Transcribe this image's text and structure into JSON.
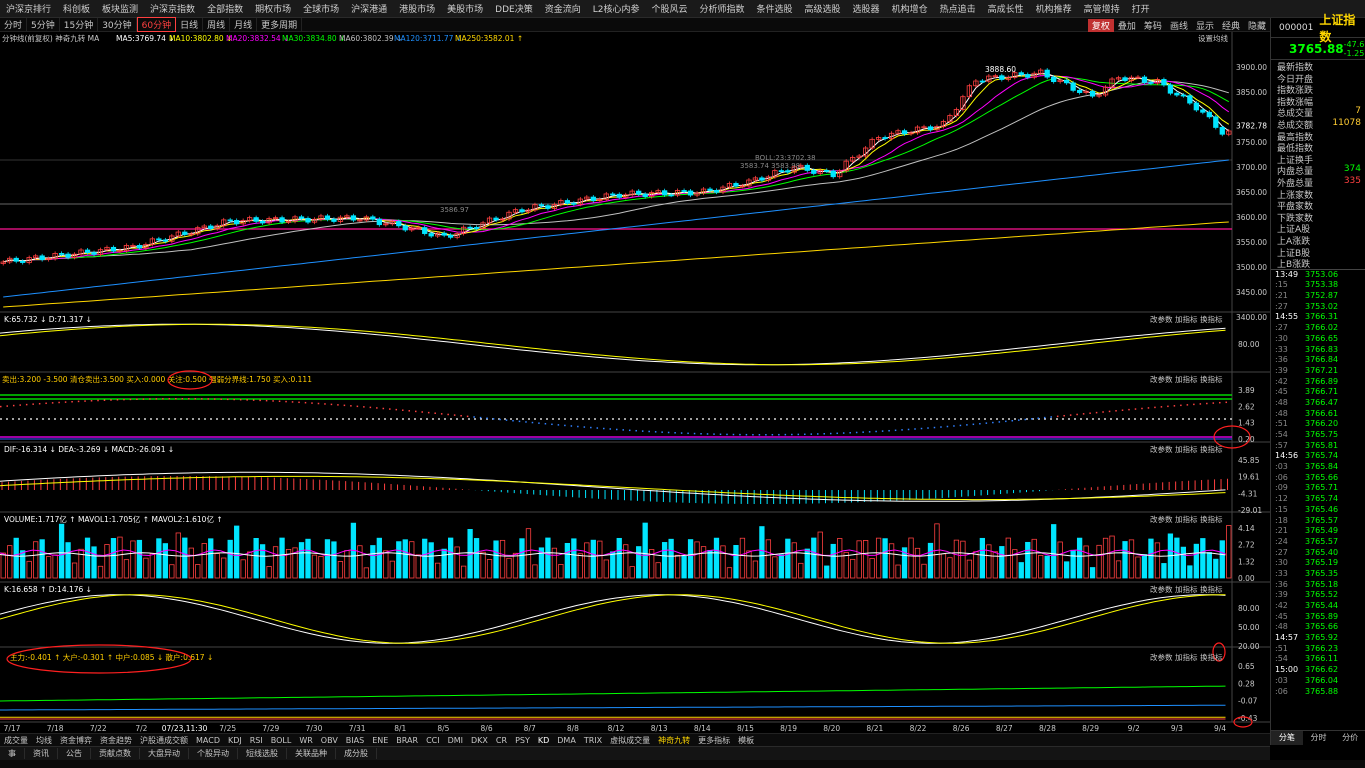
{
  "top_menu": [
    "沪深京排行",
    "科创板",
    "板块监测",
    "沪深京指数",
    "全部指数",
    "期权市场",
    "全球市场",
    "沪深港通",
    "港股市场",
    "美股市场",
    "DDE决策",
    "资金流向",
    "L2核心内参",
    "个股风云",
    "分析师指数",
    "条件选股",
    "高级选股",
    "选股器",
    "机构增仓",
    "热点追击",
    "高成长性",
    "机构推荐",
    "高管增持",
    "打开"
  ],
  "periods": [
    "分时",
    "5分钟",
    "15分钟",
    "30分钟",
    "60分钟",
    "日线",
    "周线",
    "月线",
    "更多周期"
  ],
  "active_period": "60分钟",
  "toolbar_right": [
    "复权",
    "叠加",
    "筹码",
    "画线",
    "显示",
    "经典",
    "隐藏"
  ],
  "ma_line": {
    "label": "分钟线(前复权)  神奇九转  MA",
    "ma5": "MA5:3769.74 ↓",
    "ma10": "MA10:3802.80 ↓",
    "ma20": "MA20:3832.54 ↓",
    "ma30": "MA30:3834.80 ↓",
    "ma60": "MA60:3802.39 ↓",
    "ma120": "MA120:3711.77 ↓",
    "ma250": "MA250:3582.01 ↑",
    "settings": "设置均线"
  },
  "price_axis": [
    "3900.00",
    "3850.00",
    "3782.78",
    "3750.00",
    "3700.00",
    "3650.00",
    "3600.00",
    "3550.00",
    "3500.00",
    "3450.00",
    "3400.00"
  ],
  "annotations": {
    "high": "3888.60",
    "boll1": "BOLL:23:3702.38",
    "boll2": "3583.74 3583.98",
    "low1": "3586.97"
  },
  "panel1": {
    "label": "K:65.732 ↓  D:71.317 ↓",
    "axis": [
      "80.00"
    ]
  },
  "panel2": {
    "label": "卖出:3.200  -3.500  清仓卖出:3.500  买入:0.000  关注:0.500  强弱分界线:1.750  买入:0.111",
    "circled": "关注:0.500",
    "axis": [
      "3.89",
      "2.62",
      "1.43",
      "0.20"
    ]
  },
  "panel3": {
    "label": "DIF:-16.314 ↓  DEA:-3.269 ↓  MACD:-26.091 ↓",
    "axis": [
      "45.85",
      "19.61",
      "-4.31",
      "-29.01"
    ]
  },
  "panel4": {
    "label": "VOLUME:1.717亿 ↑  MAVOL1:1.705亿 ↑  MAVOL2:1.610亿 ↑",
    "axis": [
      "4.14",
      "2.72",
      "1.32",
      "0.00"
    ]
  },
  "panel5": {
    "label": "K:16.658 ↑  D:14.176 ↓",
    "axis": [
      "80.00",
      "50.00",
      "20.00"
    ]
  },
  "panel6": {
    "label": "主力:-0.401 ↑  大户:-0.301 ↑  中户:0.085 ↓  散户:0.617 ↓",
    "axis": [
      "0.65",
      "0.28",
      "-0.07",
      "-0.43"
    ]
  },
  "panel_tools": [
    "改参数",
    "加指标",
    "换指标"
  ],
  "date_axis": [
    "7/17",
    "7/18",
    "7/22",
    "7/2",
    "07/23,11:30",
    "7/25",
    "7/29",
    "7/30",
    "7/31",
    "8/1",
    "8/5",
    "8/6",
    "8/7",
    "8/8",
    "8/12",
    "8/13",
    "8/14",
    "8/15",
    "8/19",
    "8/20",
    "8/21",
    "8/22",
    "8/26",
    "8/27",
    "8/28",
    "8/29",
    "9/2",
    "9/3",
    "9/4"
  ],
  "indicator_tabs": [
    "成交量",
    "均线",
    "资金博弈",
    "资金趋势",
    "沪股通成交额",
    "MACD",
    "KDJ",
    "RSI",
    "BOLL",
    "WR",
    "OBV",
    "BIAS",
    "ENE",
    "BRAR",
    "CCI",
    "DMI",
    "DKX",
    "CR",
    "PSY",
    "KD",
    "DMA",
    "TRIX",
    "虚拟成交量",
    "神奇九转",
    "更多指标",
    "模板"
  ],
  "bottom_tabs": [
    "事",
    "资讯",
    "公告",
    "贡献点数",
    "大盘异动",
    "个股异动",
    "短线选股",
    "关联品种",
    "成分股"
  ],
  "right_panel": {
    "code": "000001",
    "name": "上证指数",
    "price": "3765.88",
    "change": "-47.6",
    "pct": "-1.25",
    "fields": [
      {
        "k": "最新指数",
        "v": ""
      },
      {
        "k": "今日开盘",
        "v": ""
      },
      {
        "k": "指数涨跌",
        "v": ""
      },
      {
        "k": "指数涨幅",
        "v": ""
      },
      {
        "k": "总成交量",
        "v": "7"
      },
      {
        "k": "总成交额",
        "v": "11078"
      },
      {
        "k": "最高指数",
        "v": ""
      },
      {
        "k": "最低指数",
        "v": ""
      },
      {
        "k": "上证换手",
        "v": ""
      },
      {
        "k": "内盘总量",
        "v": "374"
      },
      {
        "k": "外盘总量",
        "v": "335"
      },
      {
        "k": "上涨家数",
        "v": ""
      },
      {
        "k": "平盘家数",
        "v": ""
      },
      {
        "k": "下跌家数",
        "v": ""
      },
      {
        "k": "上证A股",
        "v": ""
      },
      {
        "k": "上A涨跌",
        "v": ""
      },
      {
        "k": "上证B股",
        "v": ""
      },
      {
        "k": "上B涨跌",
        "v": ""
      }
    ],
    "ticks": [
      [
        "13:49",
        "3753.06"
      ],
      [
        ":15",
        "3753.38"
      ],
      [
        ":21",
        "3752.87"
      ],
      [
        ":27",
        "3753.02"
      ],
      [
        "14:55",
        "3766.31"
      ],
      [
        ":27",
        "3766.02"
      ],
      [
        ":30",
        "3766.65"
      ],
      [
        ":33",
        "3766.83"
      ],
      [
        ":36",
        "3766.84"
      ],
      [
        ":39",
        "3767.21"
      ],
      [
        ":42",
        "3766.89"
      ],
      [
        ":45",
        "3766.71"
      ],
      [
        ":48",
        "3766.47"
      ],
      [
        ":48",
        "3766.61"
      ],
      [
        ":51",
        "3766.20"
      ],
      [
        ":54",
        "3765.75"
      ],
      [
        ":57",
        "3765.81"
      ],
      [
        "14:56",
        "3765.74"
      ],
      [
        ":03",
        "3765.84"
      ],
      [
        ":06",
        "3765.66"
      ],
      [
        ":09",
        "3765.71"
      ],
      [
        ":12",
        "3765.74"
      ],
      [
        ":15",
        "3765.46"
      ],
      [
        ":18",
        "3765.57"
      ],
      [
        ":21",
        "3765.49"
      ],
      [
        ":24",
        "3765.57"
      ],
      [
        ":27",
        "3765.40"
      ],
      [
        ":30",
        "3765.19"
      ],
      [
        ":33",
        "3765.35"
      ],
      [
        ":36",
        "3765.18"
      ],
      [
        ":39",
        "3765.52"
      ],
      [
        ":42",
        "3765.44"
      ],
      [
        ":45",
        "3765.89"
      ],
      [
        ":48",
        "3765.66"
      ],
      [
        "14:57",
        "3765.92"
      ],
      [
        ":51",
        "3766.23"
      ],
      [
        ":54",
        "3766.11"
      ],
      [
        "15:00",
        "3766.62"
      ],
      [
        ":03",
        "3766.04"
      ],
      [
        ":06",
        "3765.88"
      ]
    ],
    "bottom": [
      "分笔",
      "分时",
      "分价"
    ]
  },
  "colors": {
    "up": "#ff4040",
    "down": "#00e5ff",
    "ma5": "#ffffff",
    "ma10": "#ffff00",
    "ma20": "#ff00ff",
    "ma30": "#00ff00",
    "ma60": "#c0c0c0",
    "ma120": "#1e90ff",
    "ma250": "#ffd700",
    "magenta_line": "#ff1493"
  }
}
